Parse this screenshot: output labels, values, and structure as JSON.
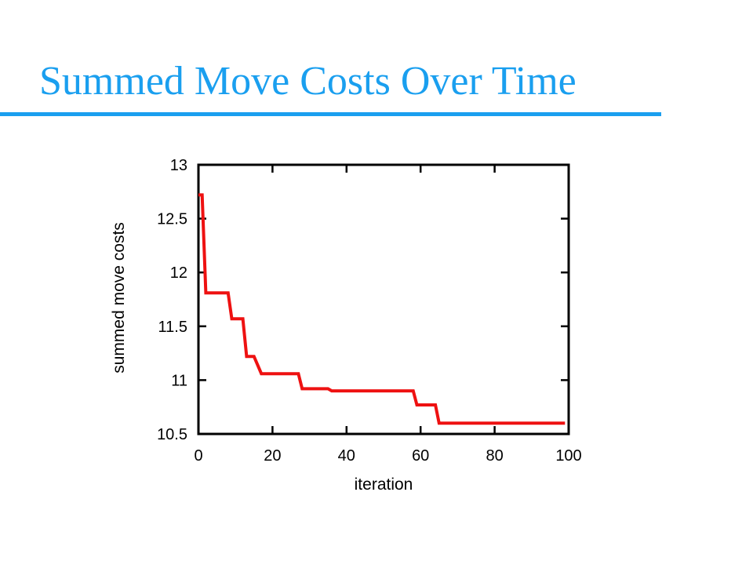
{
  "slide": {
    "title": "Summed Move Costs Over Time",
    "title_color": "#1a9fef",
    "rule_color": "#1a9fef"
  },
  "chart_data": {
    "type": "line",
    "xlabel": "iteration",
    "ylabel": "summed move costs",
    "xlim": [
      0,
      100
    ],
    "ylim": [
      10.5,
      13
    ],
    "xticks": [
      0,
      20,
      40,
      60,
      80,
      100
    ],
    "yticks": [
      10.5,
      11,
      11.5,
      12,
      12.5,
      13
    ],
    "xtick_labels": [
      "0",
      "20",
      "40",
      "60",
      "80",
      "100"
    ],
    "ytick_labels": [
      "10.5",
      "11",
      "11.5",
      "12",
      "12.5",
      "13"
    ],
    "grid": false,
    "series": [
      {
        "color": "#ee1111",
        "x": [
          0,
          1,
          2,
          8,
          9,
          12,
          13,
          15,
          17,
          27,
          28,
          35,
          36,
          58,
          59,
          64,
          65,
          99
        ],
        "y": [
          12.72,
          12.72,
          11.81,
          11.81,
          11.57,
          11.57,
          11.22,
          11.22,
          11.06,
          11.06,
          10.92,
          10.92,
          10.9,
          10.9,
          10.77,
          10.77,
          10.6,
          10.6
        ]
      }
    ]
  }
}
